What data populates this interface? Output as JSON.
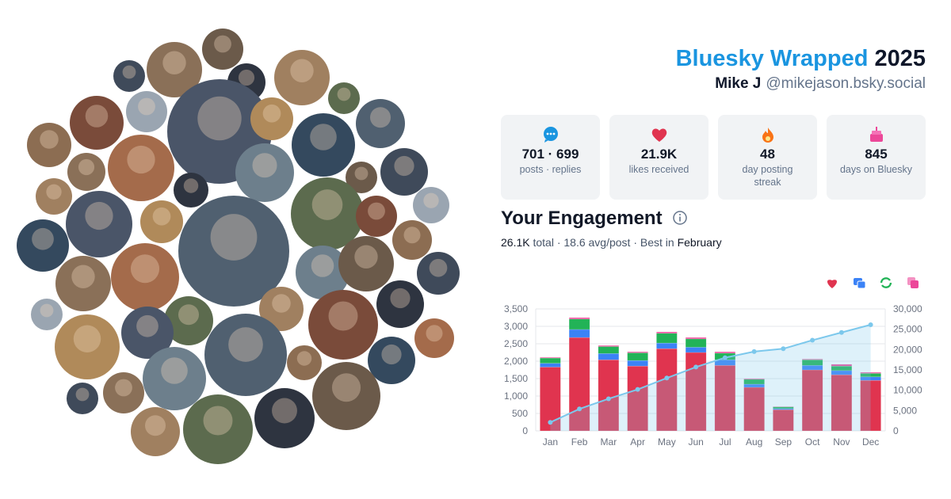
{
  "header": {
    "title": "Bluesky Wrapped",
    "year": "2025",
    "name": "Mike J",
    "handle": "@mikejason.bsky.social"
  },
  "stats": [
    {
      "value": "701 · 699",
      "label": "posts · replies"
    },
    {
      "value": "21.9K",
      "label": "likes received"
    },
    {
      "value": "48",
      "label": "day posting streak"
    },
    {
      "value": "845",
      "label": "days on Bluesky"
    }
  ],
  "engagement": {
    "title": "Your Engagement",
    "total": "26.1K",
    "middle": "total · 18.6 avg/post · Best in",
    "best": "February"
  },
  "chart_data": {
    "type": "bar",
    "stacked": true,
    "categories": [
      "Jan",
      "Feb",
      "Mar",
      "Apr",
      "May",
      "Jun",
      "Jul",
      "Aug",
      "Sep",
      "Oct",
      "Nov",
      "Dec"
    ],
    "series": [
      {
        "color": "#e0344f",
        "values": [
          1830,
          2680,
          2040,
          1860,
          2360,
          2250,
          1880,
          1250,
          610,
          1750,
          1610,
          1450
        ]
      },
      {
        "color": "#3b82f6",
        "values": [
          110,
          230,
          180,
          160,
          160,
          150,
          160,
          90,
          30,
          130,
          120,
          100
        ]
      },
      {
        "color": "#22b357",
        "values": [
          150,
          300,
          200,
          220,
          280,
          240,
          190,
          140,
          50,
          160,
          130,
          100
        ]
      },
      {
        "color": "#ec4899",
        "values": [
          20,
          40,
          30,
          30,
          40,
          40,
          40,
          20,
          10,
          20,
          50,
          30
        ]
      },
      {
        "type": "line",
        "axis": "y2",
        "color": "#7cc8ec",
        "values": [
          2100,
          5400,
          7900,
          10200,
          13000,
          15700,
          18000,
          19500,
          20200,
          22300,
          24200,
          26100
        ]
      }
    ],
    "ylim": [
      0,
      3500
    ],
    "yticks": [
      0,
      500,
      {
        "value": 1000,
        "label": "1,000"
      },
      {
        "value": 1500,
        "label": "1,500"
      },
      {
        "value": 2000,
        "label": "2,000"
      },
      {
        "value": 2500,
        "label": "2,500"
      },
      {
        "value": 3000,
        "label": "3,000"
      },
      {
        "value": 3500,
        "label": "3,500"
      }
    ],
    "y2lim": [
      0,
      30000
    ],
    "y2ticks": [
      0,
      {
        "value": 5000,
        "label": "5,000"
      },
      {
        "value": 10000,
        "label": "10,000"
      },
      {
        "value": 15000,
        "label": "15,000"
      },
      {
        "value": 20000,
        "label": "20,000"
      },
      {
        "value": 25000,
        "label": "25,000"
      },
      {
        "value": 30000,
        "label": "30,000"
      }
    ],
    "grid": true
  }
}
